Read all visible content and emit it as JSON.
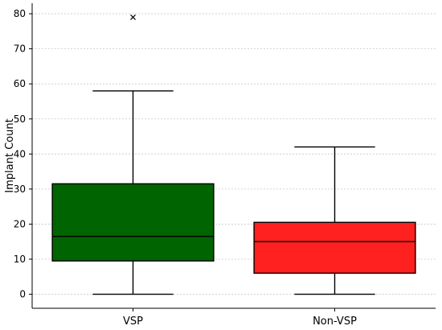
{
  "chart_data": {
    "type": "box",
    "ylabel": "Implant Count",
    "xlabel": "",
    "ylim": [
      -4,
      83
    ],
    "yticks": [
      0,
      10,
      20,
      30,
      40,
      50,
      60,
      70,
      80
    ],
    "grid": "horizontal dashed",
    "categories": [
      "VSP",
      "Non-VSP"
    ],
    "boxes": [
      {
        "category": "VSP",
        "min": 0,
        "q1": 9.5,
        "median": 16.5,
        "q3": 31.5,
        "max": 58,
        "outliers": [
          79
        ],
        "color": "#006400"
      },
      {
        "category": "Non-VSP",
        "min": 0,
        "q1": 6,
        "median": 15,
        "q3": 20.5,
        "max": 42,
        "outliers": [],
        "color": "#ff2020"
      }
    ]
  }
}
